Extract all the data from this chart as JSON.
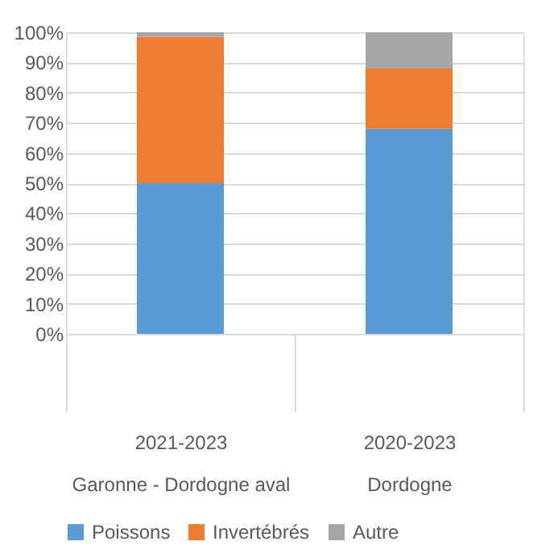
{
  "chart_data": {
    "type": "bar",
    "stacked": true,
    "categories": [
      "2021-2023\nGaronne - Dordogne aval",
      "2020-2023\nDordogne"
    ],
    "series": [
      {
        "name": "Poissons",
        "color": "#5b9bd5",
        "values": [
          50,
          68
        ]
      },
      {
        "name": "Invertébrés",
        "color": "#ed7d31",
        "values": [
          48.5,
          20
        ]
      },
      {
        "name": "Autre",
        "color": "#a5a5a5",
        "values": [
          1.5,
          12
        ]
      }
    ],
    "ylim": [
      0,
      100
    ],
    "yticks": [
      {
        "value": 0,
        "label": "0%"
      },
      {
        "value": 10,
        "label": "10%"
      },
      {
        "value": 20,
        "label": "20%"
      },
      {
        "value": 30,
        "label": "30%"
      },
      {
        "value": 40,
        "label": "40%"
      },
      {
        "value": 50,
        "label": "50%"
      },
      {
        "value": 60,
        "label": "60%"
      },
      {
        "value": 70,
        "label": "70%"
      },
      {
        "value": 80,
        "label": "80%"
      },
      {
        "value": 90,
        "label": "90%"
      },
      {
        "value": 100,
        "label": "100%"
      }
    ],
    "grid": "y",
    "legend": "bottom"
  }
}
